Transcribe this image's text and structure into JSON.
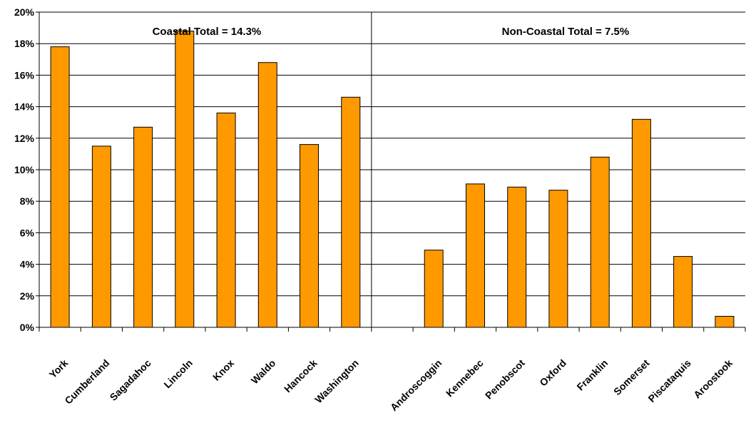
{
  "chart_data": {
    "type": "bar",
    "title": "",
    "xlabel": "",
    "ylabel": "",
    "ylim": [
      0,
      20
    ],
    "y_tick_step": 2,
    "y_tick_format": "percent",
    "grid": true,
    "colors": {
      "bar": "#ff9900",
      "bar_stroke": "#000000",
      "grid": "#000000"
    },
    "categories": [
      "York",
      "Cumberland",
      "Sagadahoc",
      "Lincoln",
      "Knox",
      "Waldo",
      "Hancock",
      "Washington",
      "",
      "Androscoggin",
      "Kennebec",
      "Penobscot",
      "Oxford",
      "Franklin",
      "Somerset",
      "Piscataquis",
      "Aroostook"
    ],
    "values": [
      17.8,
      11.5,
      12.7,
      18.8,
      13.6,
      16.8,
      11.6,
      14.6,
      null,
      4.9,
      9.1,
      8.9,
      8.7,
      10.8,
      13.2,
      4.5,
      0.7
    ],
    "groups": [
      {
        "label": "Coastal Total = 14.3%",
        "categories": [
          "York",
          "Cumberland",
          "Sagadahoc",
          "Lincoln",
          "Knox",
          "Waldo",
          "Hancock",
          "Washington"
        ]
      },
      {
        "label": "Non-Coastal Total = 7.5%",
        "categories": [
          "Androscoggin",
          "Kennebec",
          "Penobscot",
          "Oxford",
          "Franklin",
          "Somerset",
          "Piscataquis",
          "Aroostook"
        ]
      }
    ],
    "divider_after_index": 8
  }
}
